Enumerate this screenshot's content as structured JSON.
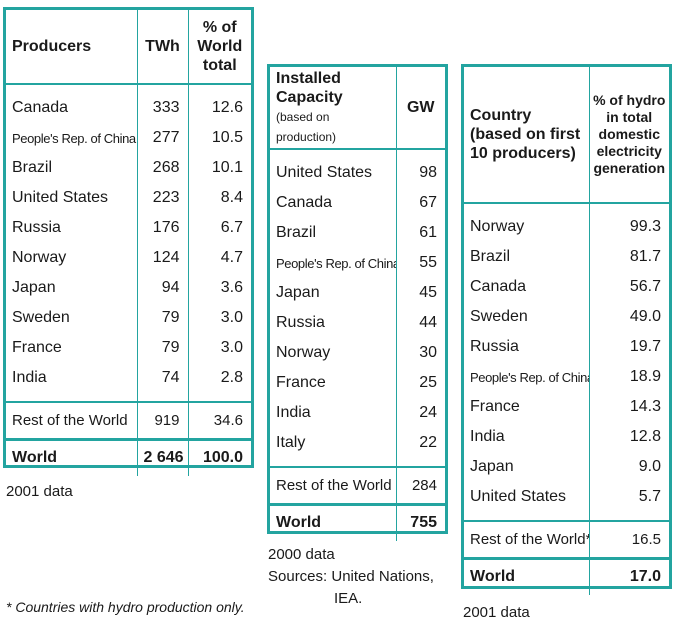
{
  "producers": {
    "headers": [
      "Producers",
      "TWh",
      "% of World total"
    ],
    "rows": [
      [
        "Canada",
        "333",
        "12.6"
      ],
      [
        "People's Rep. of China",
        "277",
        "10.5"
      ],
      [
        "Brazil",
        "268",
        "10.1"
      ],
      [
        "United States",
        "223",
        "8.4"
      ],
      [
        "Russia",
        "176",
        "6.7"
      ],
      [
        "Norway",
        "124",
        "4.7"
      ],
      [
        "Japan",
        "94",
        "3.6"
      ],
      [
        "Sweden",
        "79",
        "3.0"
      ],
      [
        "France",
        "79",
        "3.0"
      ],
      [
        "India",
        "74",
        "2.8"
      ]
    ],
    "rest": [
      "Rest of the World",
      "919",
      "34.6"
    ],
    "total": [
      "World",
      "2 646",
      "100.0"
    ],
    "note": "2001 data"
  },
  "capacity": {
    "header_title": "Installed Capacity",
    "header_sub": "(based on production)",
    "header_unit": "GW",
    "rows": [
      [
        "United States",
        "98"
      ],
      [
        "Canada",
        "67"
      ],
      [
        "Brazil",
        "61"
      ],
      [
        "People's Rep. of China",
        "55"
      ],
      [
        "Japan",
        "45"
      ],
      [
        "Russia",
        "44"
      ],
      [
        "Norway",
        "30"
      ],
      [
        "France",
        "25"
      ],
      [
        "India",
        "24"
      ],
      [
        "Italy",
        "22"
      ]
    ],
    "rest": [
      "Rest of the World",
      "284"
    ],
    "total": [
      "World",
      "755"
    ],
    "note_year": "2000 data",
    "note_sources": "Sources:  United Nations,",
    "note_sources2": "IEA."
  },
  "share": {
    "header_title": "Country (based on first 10 producers)",
    "header_unit": "% of hydro in total domestic electricity generation",
    "rows": [
      [
        "Norway",
        "99.3"
      ],
      [
        "Brazil",
        "81.7"
      ],
      [
        "Canada",
        "56.7"
      ],
      [
        "Sweden",
        "49.0"
      ],
      [
        "Russia",
        "19.7"
      ],
      [
        "People's Rep. of China",
        "18.9"
      ],
      [
        "France",
        "14.3"
      ],
      [
        "India",
        "12.8"
      ],
      [
        "Japan",
        "9.0"
      ],
      [
        "United States",
        "5.7"
      ]
    ],
    "rest": [
      "Rest of the World*",
      "16.5"
    ],
    "total": [
      "World",
      "17.0"
    ],
    "note": "2001 data"
  },
  "footnote": "* Countries with hydro production only.",
  "accent_color": "#23a4a0"
}
